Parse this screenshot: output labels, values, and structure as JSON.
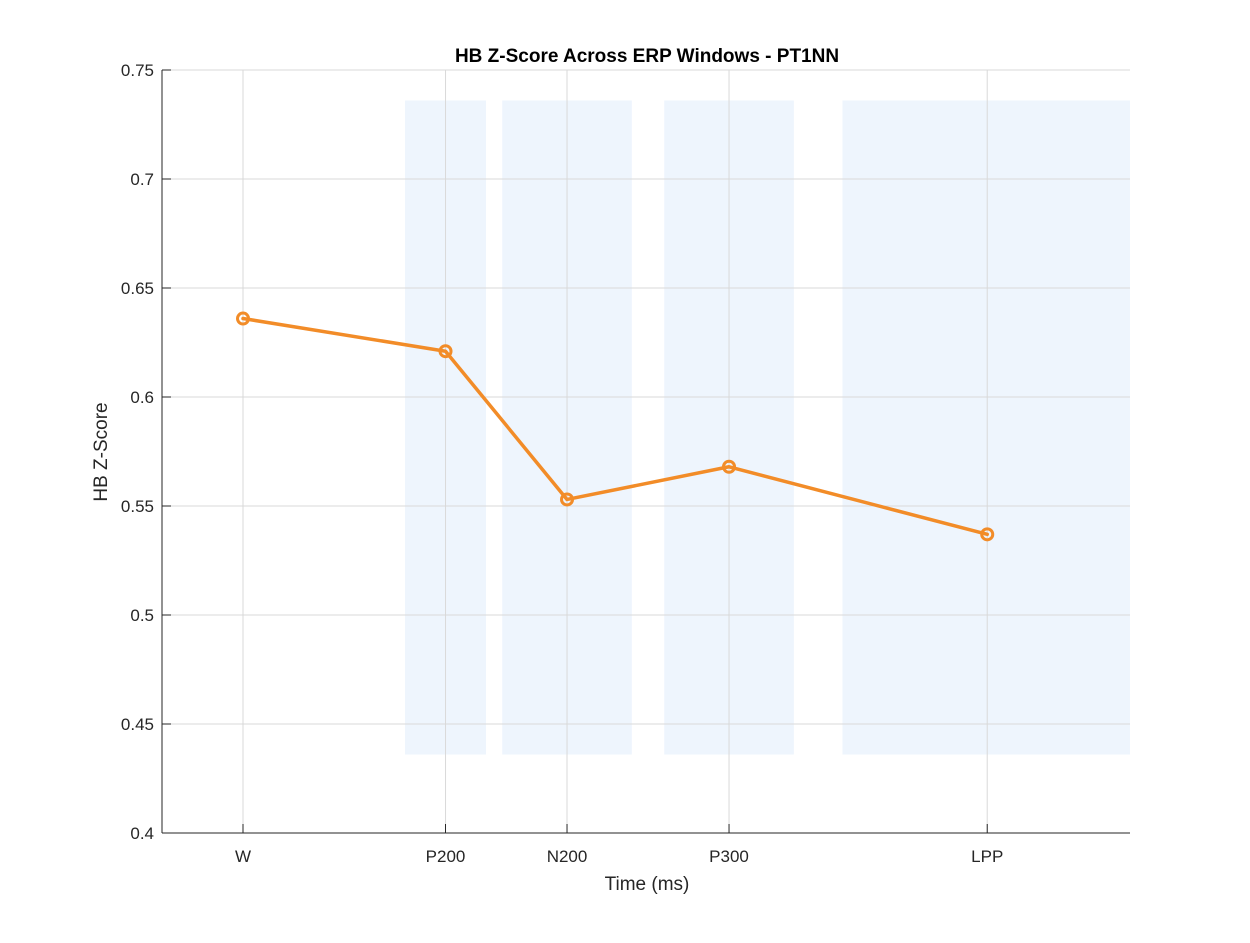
{
  "chart_data": {
    "type": "line",
    "title": "HB Z-Score Across ERP Windows - PT1NN",
    "xlabel": "Time (ms)",
    "ylabel": "HB Z-Score",
    "x_ticks": [
      {
        "label": "W",
        "x": 0
      },
      {
        "label": "P200",
        "x": 200
      },
      {
        "label": "N200",
        "x": 320
      },
      {
        "label": "P300",
        "x": 480
      },
      {
        "label": "LPP",
        "x": 735
      }
    ],
    "xlim": [
      -80,
      876
    ],
    "ylim": [
      0.4,
      0.75
    ],
    "y_ticks": [
      "0.4",
      "0.45",
      "0.5",
      "0.55",
      "0.6",
      "0.65",
      "0.7",
      "0.75"
    ],
    "series": [
      {
        "x": [
          0,
          200,
          320,
          480,
          735
        ],
        "values": [
          0.636,
          0.621,
          0.553,
          0.568,
          0.537
        ],
        "color": "#f28c28",
        "marker": "circle"
      }
    ],
    "shaded_windows": [
      {
        "start": 160,
        "end": 240
      },
      {
        "start": 256,
        "end": 384
      },
      {
        "start": 416,
        "end": 544
      },
      {
        "start": 592,
        "end": 876
      }
    ],
    "shaded_ylim": [
      0.436,
      0.736
    ],
    "shade_color": "#eef5fd",
    "grid": true
  }
}
